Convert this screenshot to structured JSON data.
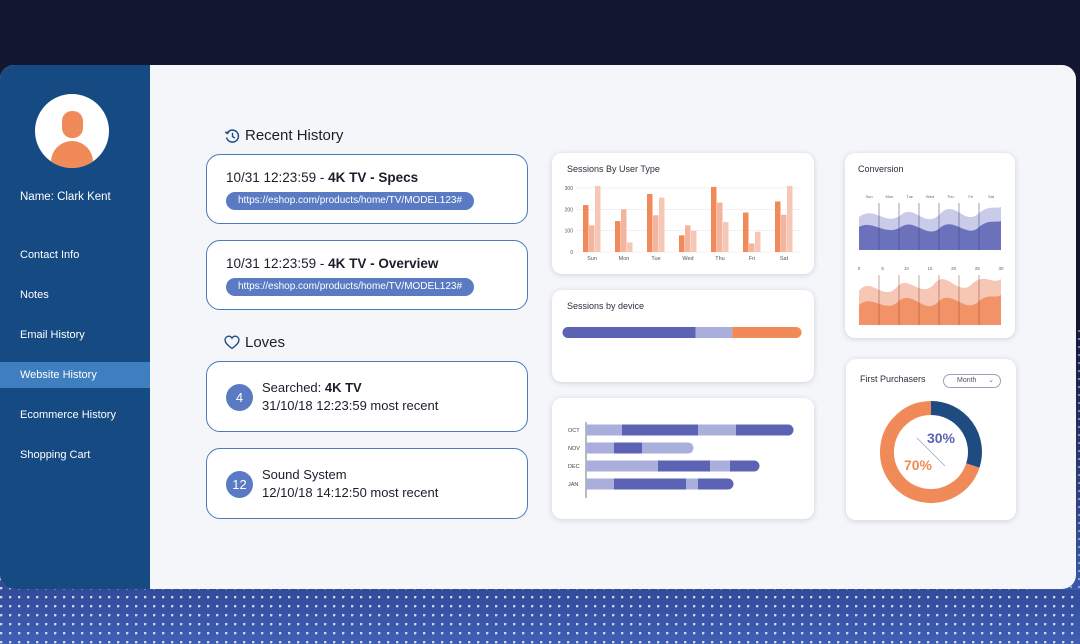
{
  "user": {
    "name_label": "Name: Clark Kent"
  },
  "nav": {
    "items": [
      {
        "label": "Contact Info",
        "active": false
      },
      {
        "label": "Notes",
        "active": false
      },
      {
        "label": "Email History",
        "active": false
      },
      {
        "label": "Website History",
        "active": true
      },
      {
        "label": "Ecommerce History",
        "active": false
      },
      {
        "label": "Shopping Cart",
        "active": false
      }
    ]
  },
  "recent_history": {
    "title": "Recent History",
    "items": [
      {
        "timestamp": "10/31 12:23:59 - ",
        "product": "4K TV - Specs",
        "url": "https://eshop.com/products/home/TV/MODEL123#"
      },
      {
        "timestamp": "10/31 12:23:59 - ",
        "product": "4K TV - Overview",
        "url": "https://eshop.com/products/home/TV/MODEL123#"
      }
    ]
  },
  "loves": {
    "title": "Loves",
    "items": [
      {
        "count": "4",
        "prefix": "Searched: ",
        "term": "4K TV",
        "detail": "31/10/18 12:23:59 most recent"
      },
      {
        "count": "12",
        "prefix": "",
        "term": "Sound System",
        "detail": "12/10/18 14:12:50 most recent"
      }
    ]
  },
  "colors": {
    "sidebar": "#164a82",
    "sidebar_active": "#3f7ebf",
    "accent_blue": "#5a7bc3",
    "orange": "#f08a58",
    "orange_light": "#f5bfa8",
    "purple_dark": "#5c62b4",
    "purple_light": "#a9aedb",
    "navy": "#1e4c80"
  },
  "charts": {
    "sessions_by_user_type": {
      "title": "Sessions By User Type",
      "chart_data": {
        "type": "bar",
        "categories": [
          "Sun",
          "Mon",
          "Tue",
          "Wed",
          "Thu",
          "Fri",
          "Sat"
        ],
        "ylim": [
          0,
          300
        ],
        "yticks": [
          "0",
          "100",
          "200",
          "300"
        ],
        "series": [
          {
            "values": [
              220,
              145,
              272,
              78,
              305,
              185,
              237
            ],
            "color": "#f08a58"
          },
          {
            "values": [
              125,
              200,
              172,
              125,
              232,
              40,
              175
            ],
            "color": "#f5b49c"
          },
          {
            "values": [
              310,
              45,
              255,
              100,
              140,
              95,
              310
            ],
            "color": "#f7c7b6"
          }
        ]
      }
    },
    "sessions_by_device": {
      "title": "Sessions by device",
      "chart_data": {
        "type": "bar",
        "orientation": "horizontal-stacked",
        "series": [
          {
            "value": 56,
            "color": "#5c62b4"
          },
          {
            "value": 16,
            "color": "#a9aedb"
          },
          {
            "value": 28,
            "color": "#f08a58"
          }
        ]
      }
    },
    "monthly_stacked": {
      "chart_data": {
        "type": "bar",
        "orientation": "horizontal-stacked",
        "categories": [
          "OCT",
          "NOV",
          "DEC",
          "JAN"
        ],
        "colors": [
          "#a9aedb",
          "#5c62b4",
          "#a9aedb",
          "#5c62b4"
        ],
        "series": [
          {
            "category": "OCT",
            "segments": [
              18,
              38,
              19,
              26
            ]
          },
          {
            "category": "NOV",
            "segments": [
              14,
              14,
              23
            ]
          },
          {
            "category": "DEC",
            "segments": [
              36,
              26,
              10,
              12
            ]
          },
          {
            "category": "JAN",
            "segments": [
              14,
              36,
              6,
              15
            ]
          }
        ]
      }
    },
    "conversion": {
      "title": "Conversion",
      "chart_data": {
        "type": "area",
        "top": {
          "categories": [
            "Sun",
            "Mon",
            "Tue",
            "Wed",
            "Thu",
            "Fri",
            "Sat"
          ],
          "color": "#5c62b4"
        },
        "bottom": {
          "x_ticks": [
            "0",
            "5",
            "10",
            "15",
            "20",
            "25",
            "30"
          ],
          "color": "#f08a58"
        }
      }
    },
    "first_purchasers": {
      "title": "First Purchasers",
      "dropdown_value": "Month",
      "chart_data": {
        "type": "pie",
        "slices": [
          {
            "label": "30%",
            "value": 30,
            "color": "#1e4c80"
          },
          {
            "label": "70%",
            "value": 70,
            "color": "#f08a58"
          }
        ]
      }
    }
  }
}
